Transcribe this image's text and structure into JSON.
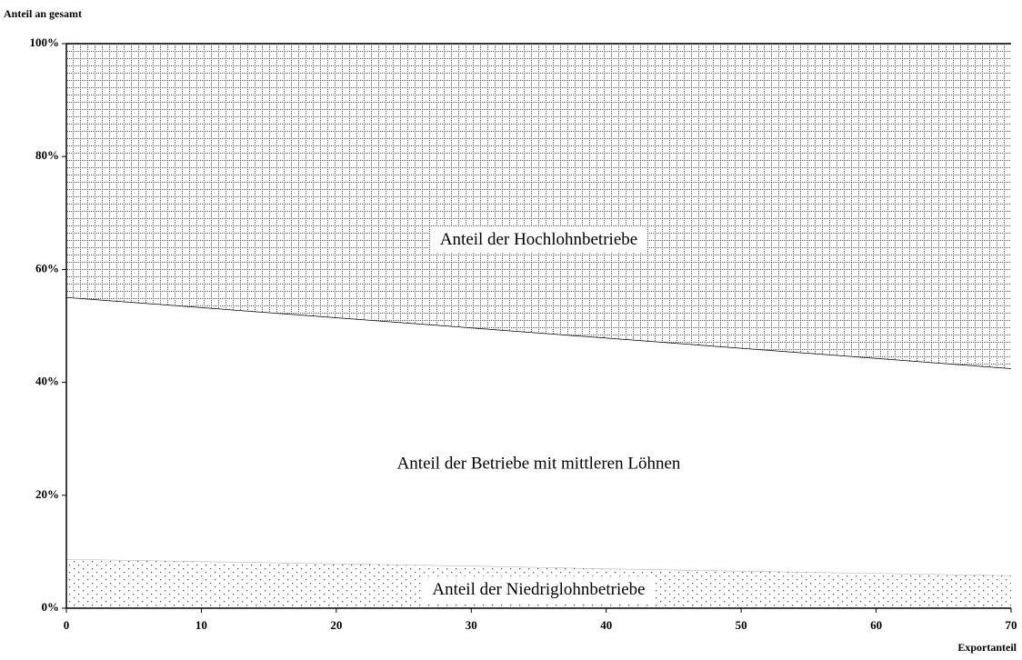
{
  "chart_data": {
    "type": "stacked-area",
    "y_axis_label": "Anteil an gesamt",
    "x_axis_label": "Exportanteil",
    "x": [
      0,
      10,
      20,
      30,
      40,
      50,
      60,
      70
    ],
    "xlim": [
      0,
      70
    ],
    "xticks": [
      0,
      10,
      20,
      30,
      40,
      50,
      60,
      70
    ],
    "ylim": [
      0,
      100
    ],
    "yticks": [
      {
        "value": 0,
        "label": "0%"
      },
      {
        "value": 20,
        "label": "20%"
      },
      {
        "value": 40,
        "label": "40%"
      },
      {
        "value": 60,
        "label": "60%"
      },
      {
        "value": 80,
        "label": "80%"
      },
      {
        "value": 100,
        "label": "100%"
      }
    ],
    "series": [
      {
        "name": "Anteil der Niedriglohnbetriebe",
        "pattern": "dots",
        "values": [
          8.7,
          8.3,
          7.9,
          7.5,
          7.0,
          6.6,
          6.2,
          5.8
        ]
      },
      {
        "name": "Anteil der Betriebe mit mittleren Löhnen",
        "pattern": "none",
        "values": [
          46.4,
          45.0,
          43.6,
          42.2,
          40.9,
          39.5,
          38.1,
          36.7
        ]
      },
      {
        "name": "Anteil der Hochlohnbetriebe",
        "pattern": "grid",
        "values": [
          44.9,
          46.7,
          48.5,
          50.3,
          52.1,
          53.9,
          55.7,
          57.5
        ]
      }
    ]
  }
}
